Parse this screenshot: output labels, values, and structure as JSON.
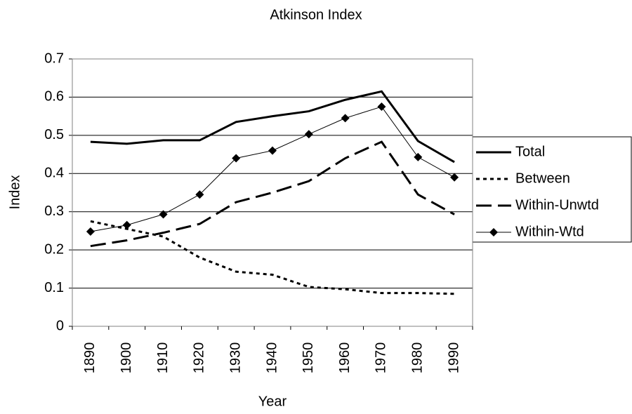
{
  "chart_data": {
    "type": "line",
    "title": "Atkinson Index",
    "x_label": "Year",
    "y_label": "Index",
    "categories": [
      "1890",
      "1900",
      "1910",
      "1920",
      "1930",
      "1940",
      "1950",
      "1960",
      "1970",
      "1980",
      "1990"
    ],
    "series": [
      {
        "name": "Total",
        "color": "#000000",
        "line_style": "solid",
        "line_width": 3,
        "values": [
          0.483,
          0.478,
          0.487,
          0.487,
          0.535,
          0.55,
          0.563,
          0.593,
          0.615,
          0.485,
          0.43
        ]
      },
      {
        "name": "Between",
        "color": "#000000",
        "line_style": "dotted",
        "line_width": 3,
        "values": [
          0.275,
          0.255,
          0.235,
          0.18,
          0.143,
          0.135,
          0.103,
          0.097,
          0.087,
          0.087,
          0.085
        ]
      },
      {
        "name": "Within-Unwtd",
        "color": "#000000",
        "line_style": "dashed",
        "line_width": 3,
        "values": [
          0.21,
          0.225,
          0.245,
          0.268,
          0.325,
          0.35,
          0.38,
          0.44,
          0.483,
          0.345,
          0.293
        ]
      },
      {
        "name": "Within-Wtd",
        "color": "#000000",
        "line_style": "solid",
        "line_width": 1,
        "marker": "diamond",
        "values": [
          0.248,
          0.265,
          0.293,
          0.345,
          0.44,
          0.46,
          0.503,
          0.545,
          0.575,
          0.443,
          0.39
        ]
      }
    ],
    "ylim": [
      0,
      0.7
    ],
    "yticks": [
      0,
      0.1,
      0.2,
      0.3,
      0.4,
      0.5,
      0.6,
      0.7
    ],
    "grid": true,
    "legend": "right"
  }
}
